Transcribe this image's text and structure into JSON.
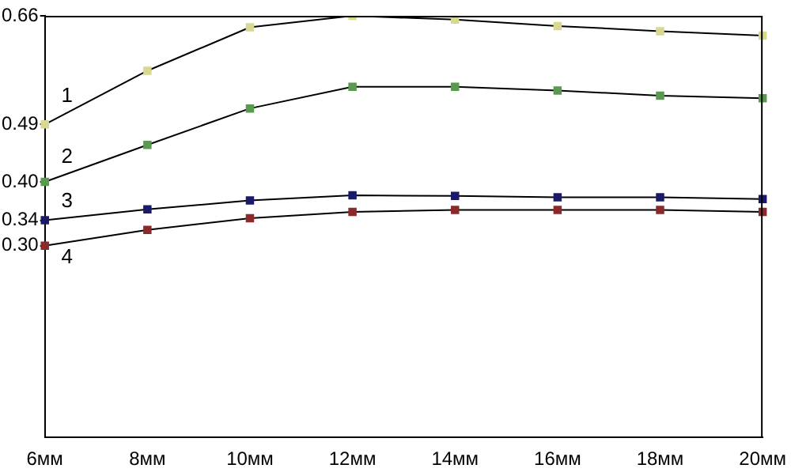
{
  "chart_data": {
    "type": "line",
    "categories": [
      "6мм",
      "8мм",
      "10мм",
      "12мм",
      "14мм",
      "16мм",
      "18мм",
      "20мм"
    ],
    "series": [
      {
        "name": "1",
        "color": "#d8d890",
        "values": [
          0.49,
          0.574,
          0.642,
          0.66,
          0.654,
          0.644,
          0.636,
          0.629
        ]
      },
      {
        "name": "2",
        "color": "#5a9a50",
        "values": [
          0.4,
          0.458,
          0.515,
          0.549,
          0.549,
          0.543,
          0.535,
          0.531
        ]
      },
      {
        "name": "3",
        "color": "#1a1a6a",
        "values": [
          0.34,
          0.357,
          0.371,
          0.379,
          0.378,
          0.376,
          0.376,
          0.373
        ]
      },
      {
        "name": "4",
        "color": "#8a2a2a",
        "values": [
          0.3,
          0.325,
          0.343,
          0.353,
          0.356,
          0.356,
          0.356,
          0.353
        ]
      }
    ],
    "ylim": [
      0,
      0.66
    ],
    "yticks": [
      {
        "value": 0.3,
        "label": "0.30"
      },
      0.34,
      {
        "value": 0.4,
        "label": "0.40"
      },
      0.49,
      0.66
    ],
    "grid": false,
    "legend": false,
    "marker": "square",
    "line_style": "solid"
  }
}
